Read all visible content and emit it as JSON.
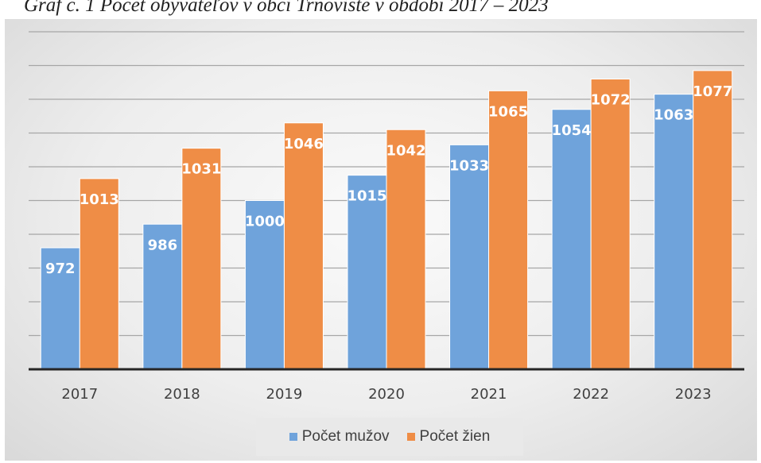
{
  "caption": "Graf č. 1 Počet obyvateľov v obci Trnovište v období 2017 – 2023",
  "colors": {
    "men": "#6fa3db",
    "women": "#ef8d46"
  },
  "chart_data": {
    "type": "bar",
    "title": "",
    "xlabel": "",
    "ylabel": "",
    "categories": [
      "2017",
      "2018",
      "2019",
      "2020",
      "2021",
      "2022",
      "2023"
    ],
    "series": [
      {
        "name": "Počet mužov",
        "values": [
          972,
          986,
          1000,
          1015,
          1033,
          1054,
          1063
        ]
      },
      {
        "name": "Počet žien",
        "values": [
          1013,
          1031,
          1046,
          1042,
          1065,
          1072,
          1077
        ]
      }
    ],
    "ylim": [
      900,
      1100
    ],
    "y_axis_visible": false,
    "grid": true,
    "data_labels": true,
    "legend_position": "bottom"
  }
}
